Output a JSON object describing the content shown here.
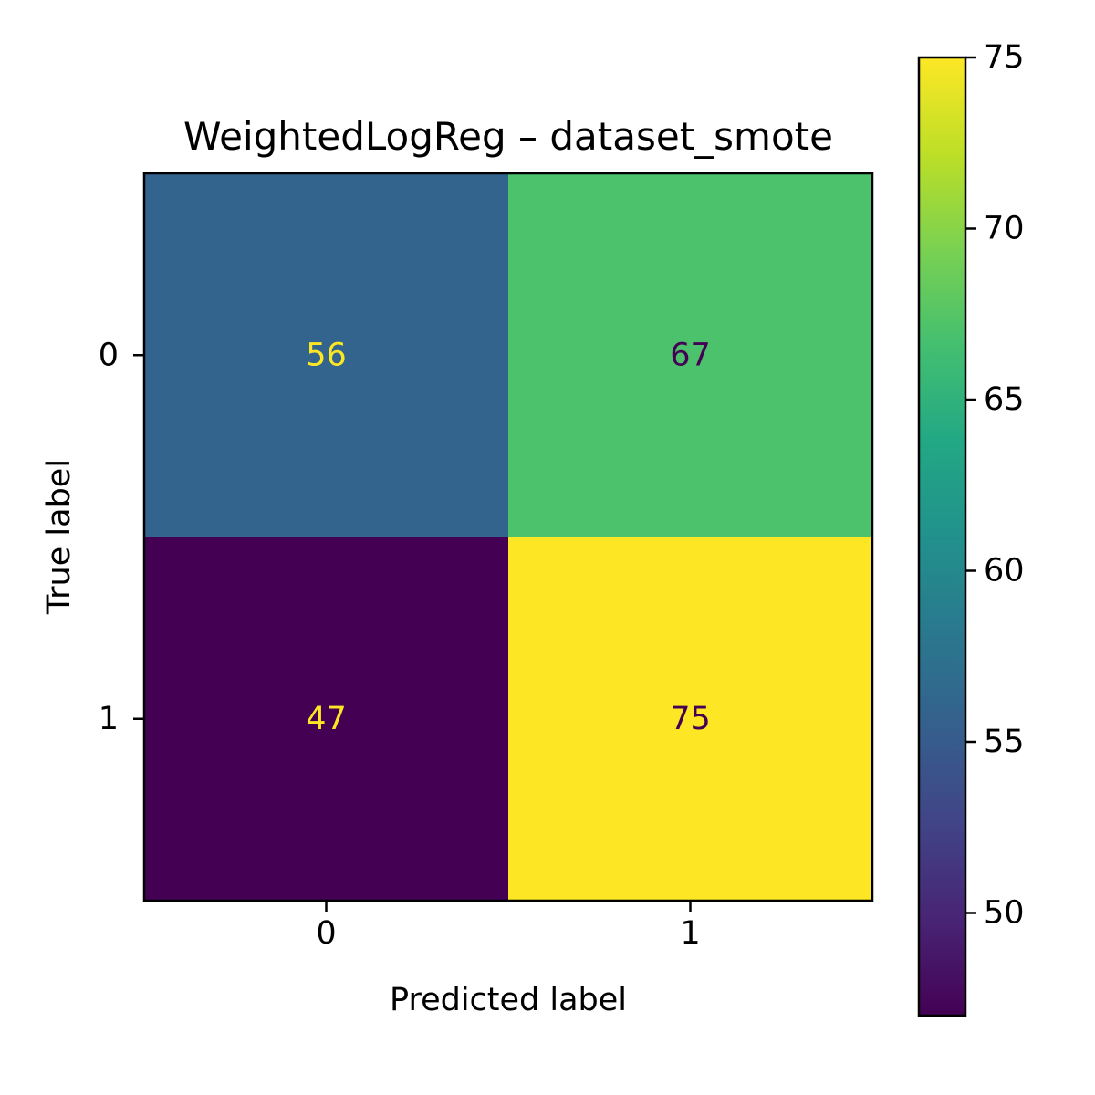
{
  "chart_data": {
    "type": "heatmap",
    "title": "WeightedLogReg – dataset_smote",
    "xlabel": "Predicted label",
    "ylabel": "True label",
    "x_categories": [
      "0",
      "1"
    ],
    "y_categories": [
      "0",
      "1"
    ],
    "values": [
      [
        56,
        67
      ],
      [
        47,
        75
      ]
    ],
    "colormap": "viridis",
    "colorbar": {
      "min": 47,
      "max": 75,
      "ticks": [
        50,
        55,
        60,
        65,
        70,
        75
      ]
    },
    "annotation_colors": {
      "dark_cell": "#fde725",
      "light_cell": "#440154"
    }
  }
}
